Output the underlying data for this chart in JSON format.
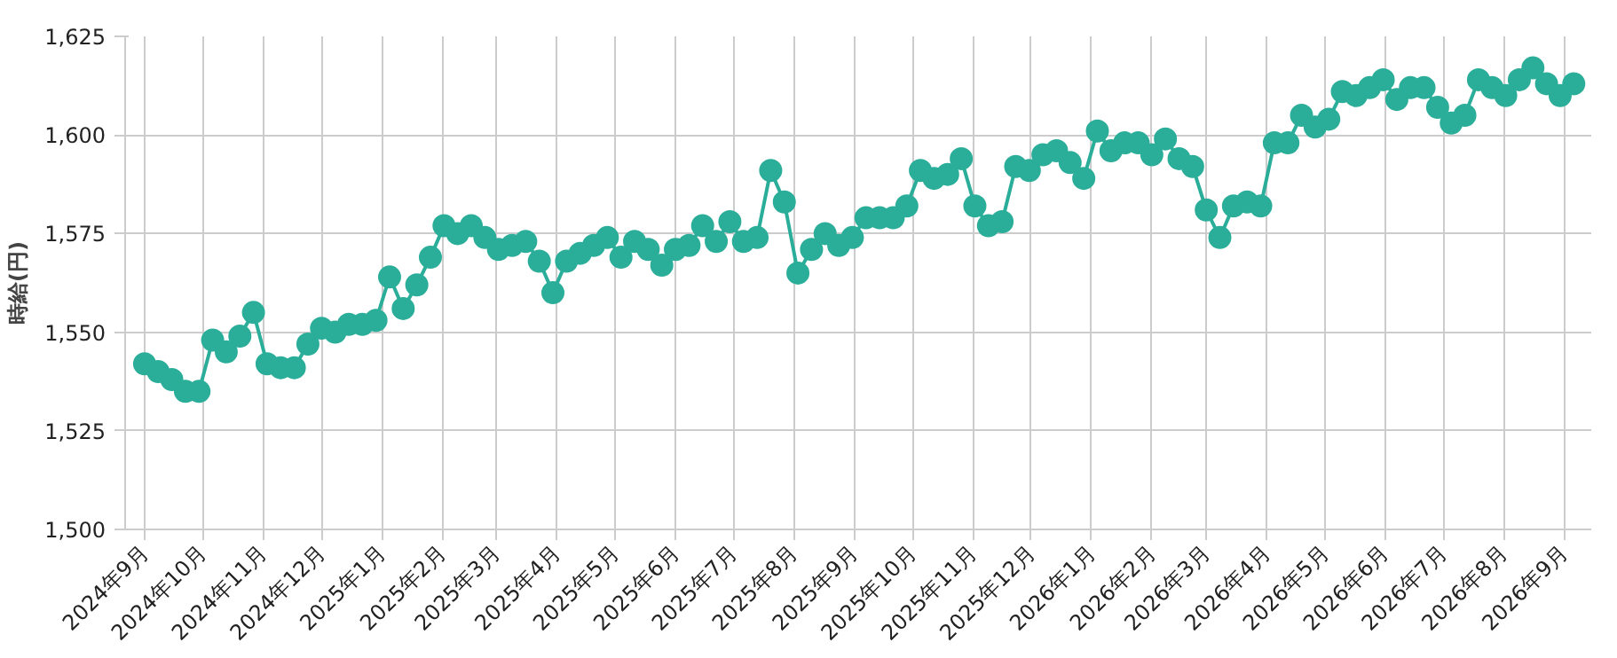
{
  "chart_data": {
    "type": "line",
    "ylabel": "時給(円)",
    "marker": "circle",
    "line_style": "solid",
    "grid": true,
    "x": [
      "2024-09-01",
      "2024-09-08",
      "2024-09-15",
      "2024-09-22",
      "2024-09-29",
      "2024-10-06",
      "2024-10-13",
      "2024-10-20",
      "2024-10-27",
      "2024-11-03",
      "2024-11-10",
      "2024-11-17",
      "2024-11-24",
      "2024-12-01",
      "2024-12-08",
      "2024-12-15",
      "2024-12-22",
      "2024-12-29",
      "2025-01-05",
      "2025-01-12",
      "2025-01-19",
      "2025-01-26",
      "2025-02-02",
      "2025-02-09",
      "2025-02-16",
      "2025-02-23",
      "2025-03-02",
      "2025-03-09",
      "2025-03-16",
      "2025-03-23",
      "2025-03-30",
      "2025-04-06",
      "2025-04-13",
      "2025-04-20",
      "2025-04-27",
      "2025-05-04",
      "2025-05-11",
      "2025-05-18",
      "2025-05-25",
      "2025-06-01",
      "2025-06-08",
      "2025-06-15",
      "2025-06-22",
      "2025-06-29",
      "2025-07-06",
      "2025-07-13",
      "2025-07-20",
      "2025-07-27",
      "2025-08-03",
      "2025-08-10",
      "2025-08-17",
      "2025-08-24",
      "2025-08-31",
      "2025-09-07",
      "2025-09-14",
      "2025-09-21",
      "2025-09-28",
      "2025-10-05",
      "2025-10-12",
      "2025-10-19",
      "2025-10-26",
      "2025-11-02",
      "2025-11-09",
      "2025-11-16",
      "2025-11-23",
      "2025-11-30",
      "2025-12-07",
      "2025-12-14",
      "2025-12-21",
      "2025-12-28",
      "2026-01-04",
      "2026-01-11",
      "2026-01-18",
      "2026-01-25",
      "2026-02-01",
      "2026-02-08",
      "2026-02-15",
      "2026-02-22",
      "2026-03-01",
      "2026-03-08",
      "2026-03-15",
      "2026-03-22",
      "2026-03-29",
      "2026-04-05",
      "2026-04-12",
      "2026-04-19",
      "2026-04-26",
      "2026-05-03",
      "2026-05-10",
      "2026-05-17",
      "2026-05-24",
      "2026-05-31",
      "2026-06-07",
      "2026-06-14",
      "2026-06-21",
      "2026-06-28",
      "2026-07-05",
      "2026-07-12",
      "2026-07-19",
      "2026-07-26",
      "2026-08-02",
      "2026-08-09",
      "2026-08-16",
      "2026-08-23",
      "2026-08-30",
      "2026-09-06"
    ],
    "series": [
      {
        "color": "#2bae99",
        "values": [
          1542,
          1540,
          1538,
          1535,
          1535,
          1548,
          1545,
          1549,
          1555,
          1542,
          1541,
          1541,
          1547,
          1551,
          1550,
          1552,
          1552,
          1553,
          1564,
          1556,
          1562,
          1569,
          1577,
          1575,
          1577,
          1574,
          1571,
          1572,
          1573,
          1568,
          1560,
          1568,
          1570,
          1572,
          1574,
          1569,
          1573,
          1571,
          1567,
          1571,
          1572,
          1577,
          1573,
          1578,
          1573,
          1574,
          1591,
          1583,
          1565,
          1571,
          1575,
          1572,
          1574,
          1579,
          1579,
          1579,
          1582,
          1591,
          1589,
          1590,
          1594,
          1582,
          1577,
          1578,
          1592,
          1591,
          1595,
          1596,
          1593,
          1589,
          1601,
          1596,
          1598,
          1598,
          1595,
          1599,
          1594,
          1592,
          1581,
          1574,
          1582,
          1583,
          1582,
          1598,
          1598,
          1605,
          1602,
          1604,
          1611,
          1610,
          1612,
          1614,
          1609,
          1612,
          1612,
          1607,
          1603,
          1605,
          1614,
          1612,
          1610,
          1614,
          1617,
          1613,
          1610,
          1613
        ]
      }
    ],
    "xlim": [
      "2024-08-22",
      "2026-09-15"
    ],
    "xticks": [
      {
        "value": "2024-09-01",
        "label": "2024年9月"
      },
      {
        "value": "2024-10-01",
        "label": "2024年10月"
      },
      {
        "value": "2024-11-01",
        "label": "2024年11月"
      },
      {
        "value": "2024-12-01",
        "label": "2024年12月"
      },
      {
        "value": "2025-01-01",
        "label": "2025年1月"
      },
      {
        "value": "2025-02-01",
        "label": "2025年2月"
      },
      {
        "value": "2025-03-01",
        "label": "2025年3月"
      },
      {
        "value": "2025-04-01",
        "label": "2025年4月"
      },
      {
        "value": "2025-05-01",
        "label": "2025年5月"
      },
      {
        "value": "2025-06-01",
        "label": "2025年6月"
      },
      {
        "value": "2025-07-01",
        "label": "2025年7月"
      },
      {
        "value": "2025-08-01",
        "label": "2025年8月"
      },
      {
        "value": "2025-09-01",
        "label": "2025年9月"
      },
      {
        "value": "2025-10-01",
        "label": "2025年10月"
      },
      {
        "value": "2025-11-01",
        "label": "2025年11月"
      },
      {
        "value": "2025-12-01",
        "label": "2025年12月"
      },
      {
        "value": "2026-01-01",
        "label": "2026年1月"
      },
      {
        "value": "2026-02-01",
        "label": "2026年2月"
      },
      {
        "value": "2026-03-01",
        "label": "2026年3月"
      },
      {
        "value": "2026-04-01",
        "label": "2026年4月"
      },
      {
        "value": "2026-05-01",
        "label": "2026年5月"
      },
      {
        "value": "2026-06-01",
        "label": "2026年6月"
      },
      {
        "value": "2026-07-01",
        "label": "2026年7月"
      },
      {
        "value": "2026-08-01",
        "label": "2026年8月"
      },
      {
        "value": "2026-09-01",
        "label": "2026年9月"
      }
    ],
    "ylim": [
      1500,
      1625
    ],
    "yticks": [
      {
        "value": 1500,
        "label": "1,500"
      },
      {
        "value": 1525,
        "label": "1,525"
      },
      {
        "value": 1550,
        "label": "1,550"
      },
      {
        "value": 1575,
        "label": "1,575"
      },
      {
        "value": 1600,
        "label": "1,600"
      },
      {
        "value": 1625,
        "label": "1,625"
      }
    ]
  }
}
